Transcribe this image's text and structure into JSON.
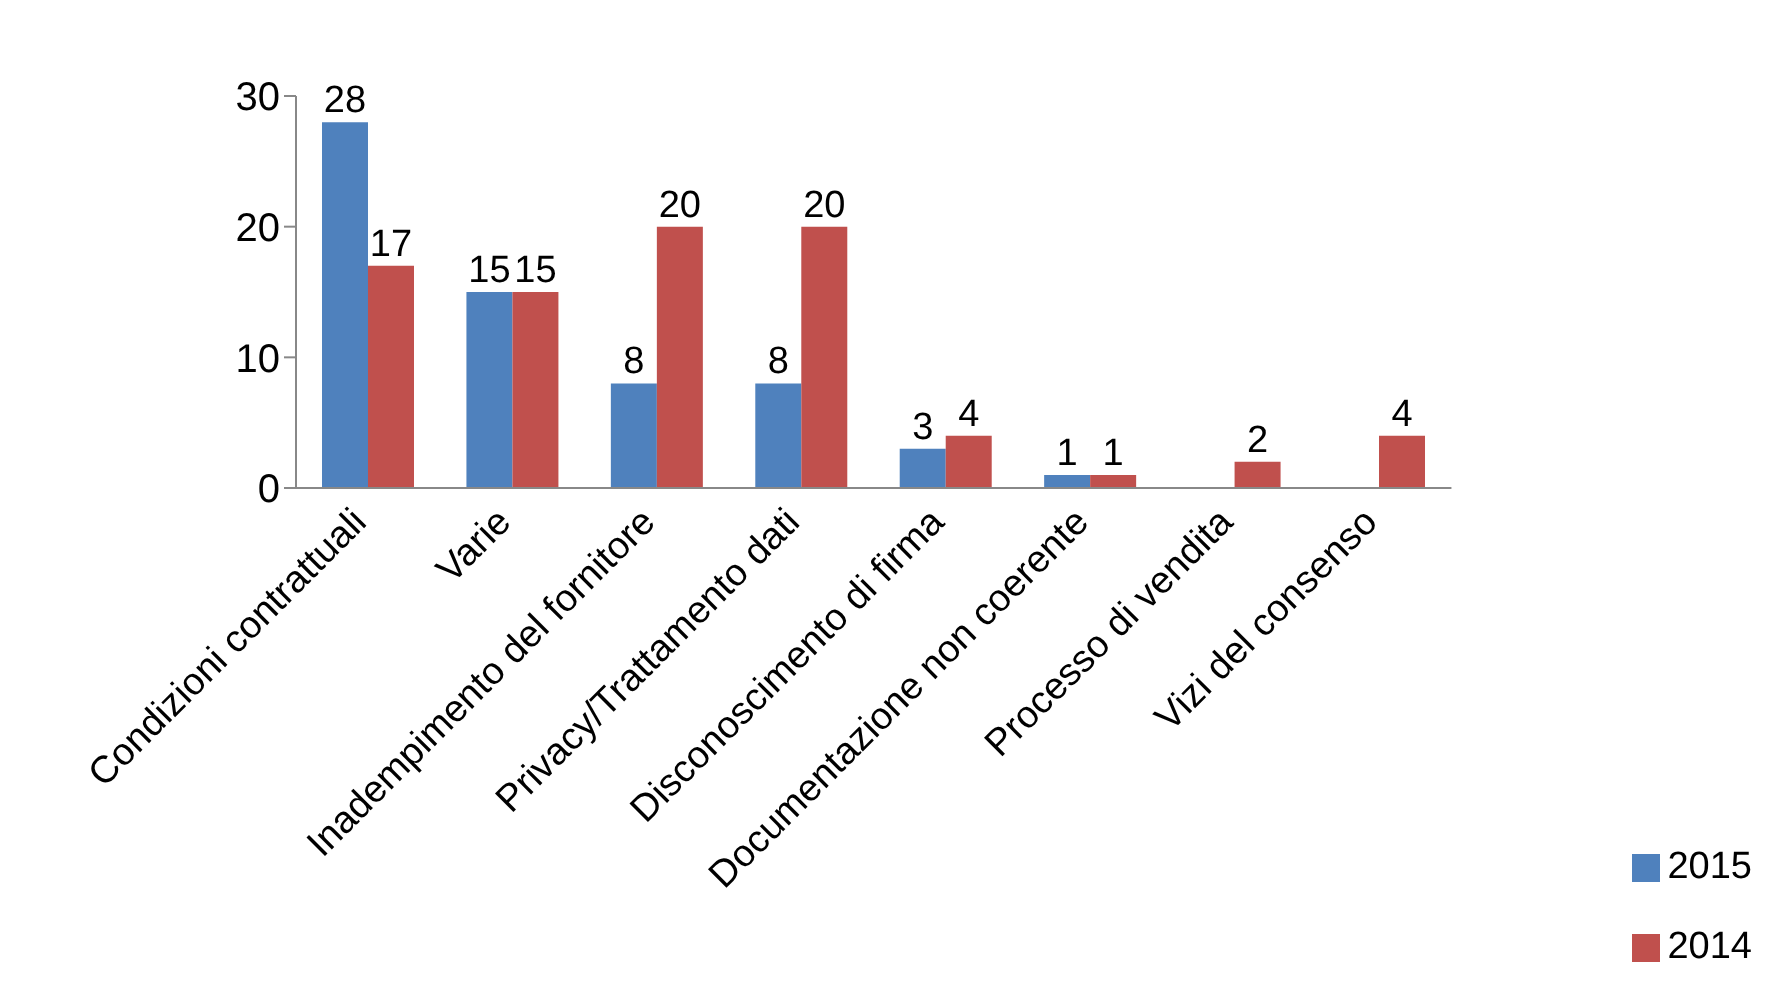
{
  "chart_data": {
    "type": "bar",
    "categories": [
      "Condizioni contrattuali",
      "Varie",
      "Inadempimento del fornitore",
      "Privacy/Trattamento dati",
      "Disconoscimento di firma",
      "Documentazione non coerente",
      "Processo di vendita",
      "Vizi del consenso"
    ],
    "series": [
      {
        "name": "2015",
        "color": "#4f81bd",
        "values": [
          28,
          15,
          8,
          8,
          3,
          1,
          null,
          null
        ]
      },
      {
        "name": "2014",
        "color": "#c0504d",
        "values": [
          17,
          15,
          20,
          20,
          4,
          1,
          2,
          4
        ]
      }
    ],
    "ylim": [
      0,
      30
    ],
    "yticks": [
      0,
      10,
      20,
      30
    ],
    "data_labels": true,
    "grid": false,
    "legend": "bottom right"
  }
}
